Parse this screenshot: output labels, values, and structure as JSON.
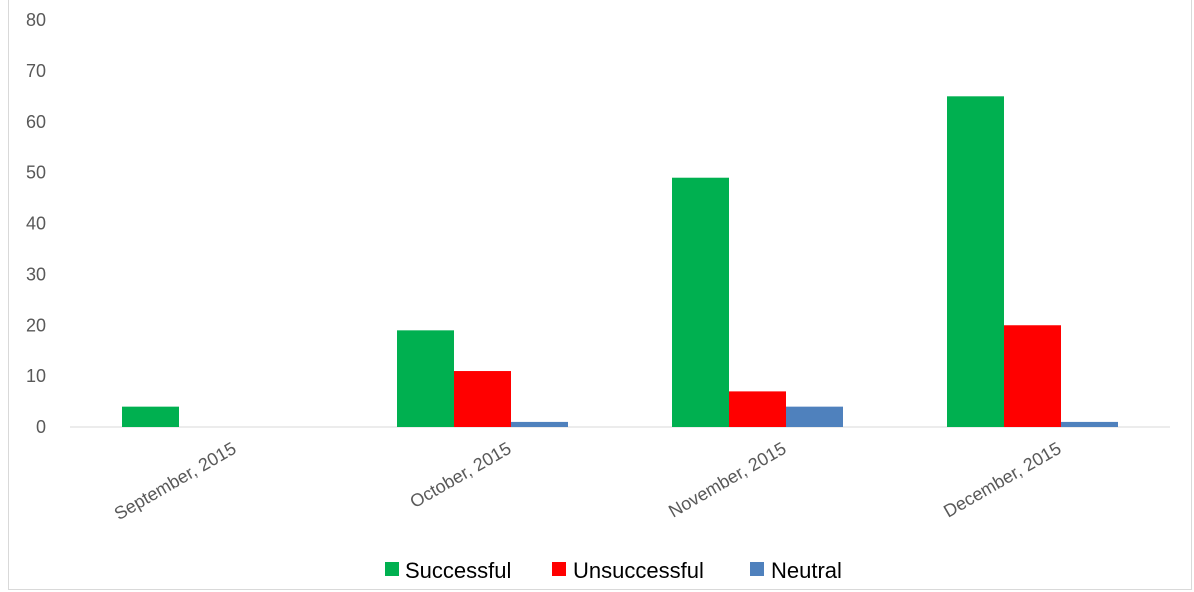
{
  "chart_data": {
    "type": "bar",
    "categories": [
      "September, 2015",
      "October, 2015",
      "November, 2015",
      "December, 2015"
    ],
    "series": [
      {
        "name": "Successful",
        "values": [
          4,
          19,
          49,
          65
        ],
        "color": "#00b050"
      },
      {
        "name": "Unsuccessful",
        "values": [
          0,
          11,
          7,
          20
        ],
        "color": "#ff0000"
      },
      {
        "name": "Neutral",
        "values": [
          0,
          1,
          4,
          1
        ],
        "color": "#4f81bd"
      }
    ],
    "ylim": [
      0,
      80
    ],
    "yticks": [
      0,
      10,
      20,
      30,
      40,
      50,
      60,
      70,
      80
    ],
    "grid": false,
    "legend_position": "bottom"
  }
}
